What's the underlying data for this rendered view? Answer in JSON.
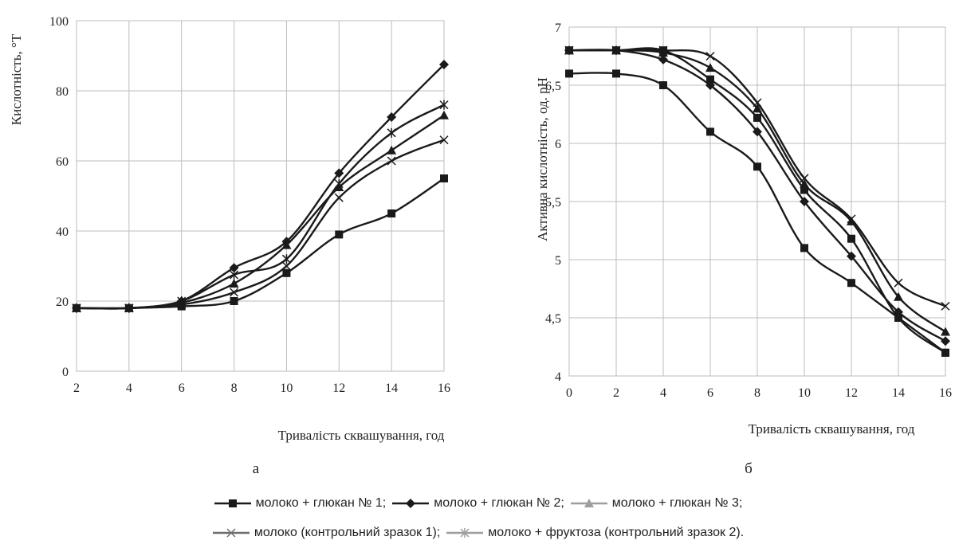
{
  "chart_data": [
    {
      "type": "line",
      "panel_label": "а",
      "xlabel": "Тривалість сквашування, год",
      "ylabel": "Кислотність, °Т",
      "x": [
        2,
        4,
        6,
        8,
        10,
        12,
        14,
        16
      ],
      "xlim": [
        2,
        16
      ],
      "ylim": [
        0,
        100
      ],
      "xticks": [
        "2",
        "4",
        "6",
        "8",
        "10",
        "12",
        "14",
        "16"
      ],
      "yticks": [
        "0",
        "20",
        "40",
        "60",
        "80",
        "100"
      ],
      "grid": true,
      "series": [
        {
          "name": "молоко + глюкан № 1",
          "marker": "square",
          "color": "#1a1a1a",
          "values": [
            18,
            18,
            18.5,
            20,
            28,
            39,
            45,
            55
          ]
        },
        {
          "name": "молоко + глюкан № 2",
          "marker": "diamond",
          "color": "#1a1a1a",
          "values": [
            18,
            18,
            20,
            29.5,
            37,
            56.5,
            72.5,
            87.5
          ]
        },
        {
          "name": "молоко + глюкан № 3",
          "marker": "triangle",
          "color": "#1a1a1a",
          "values": [
            18,
            18,
            19.5,
            25,
            36,
            52.5,
            63,
            73
          ]
        },
        {
          "name": "молоко (контрольний зразок 1)",
          "marker": "x",
          "color": "#1a1a1a",
          "values": [
            18,
            18,
            19,
            22.5,
            30,
            49.5,
            60,
            66
          ]
        },
        {
          "name": "молоко + фруктоза (контрольний зразок 2)",
          "marker": "star",
          "color": "#1a1a1a",
          "values": [
            18,
            18,
            20,
            27.5,
            32,
            53.5,
            68,
            76
          ]
        }
      ]
    },
    {
      "type": "line",
      "panel_label": "б",
      "xlabel": "Тривалість сквашування, год",
      "ylabel": "Активна кислотність, од. pH",
      "x": [
        0,
        2,
        4,
        6,
        8,
        10,
        12,
        14,
        16
      ],
      "xlim": [
        0,
        16
      ],
      "ylim": [
        4,
        7
      ],
      "xticks": [
        "0",
        "2",
        "4",
        "6",
        "8",
        "10",
        "12",
        "14",
        "16"
      ],
      "yticks": [
        "4",
        "4,5",
        "5",
        "5,5",
        "6",
        "6,5",
        "7"
      ],
      "grid": true,
      "series": [
        {
          "name": "молоко + глюкан № 1",
          "marker": "square",
          "color": "#1a1a1a",
          "values": [
            6.6,
            6.6,
            6.5,
            6.1,
            5.8,
            5.1,
            4.8,
            4.5,
            4.2
          ]
        },
        {
          "name": "молоко + глюкан № 2",
          "marker": "diamond",
          "color": "#1a1a1a",
          "values": [
            6.8,
            6.8,
            6.72,
            6.5,
            6.1,
            5.5,
            5.03,
            4.55,
            4.3
          ]
        },
        {
          "name": "молоко + глюкан № 3",
          "marker": "triangle",
          "color": "#1a1a1a",
          "values": [
            6.8,
            6.8,
            6.78,
            6.65,
            6.3,
            5.65,
            5.33,
            4.68,
            4.38
          ]
        },
        {
          "name": "молоко (контрольний зразок 1)",
          "marker": "x",
          "color": "#1a1a1a",
          "values": [
            6.8,
            6.8,
            6.8,
            6.75,
            6.35,
            5.7,
            5.35,
            4.8,
            4.6
          ]
        },
        {
          "name": "молоко + фруктоза (контрольний зразок 2)",
          "marker": "square",
          "color": "#1a1a1a",
          "values": [
            6.8,
            6.8,
            6.8,
            6.55,
            6.22,
            5.6,
            5.18,
            4.5,
            4.2
          ]
        }
      ]
    }
  ],
  "legend": {
    "items": [
      {
        "label": "молоко + глюкан № 1",
        "suffix": ";",
        "marker": "square",
        "color": "#1a1a1a"
      },
      {
        "label": "молоко + глюкан № 2",
        "suffix": ";",
        "marker": "diamond",
        "color": "#1a1a1a"
      },
      {
        "label": "молоко + глюкан № 3",
        "suffix": ";",
        "marker": "triangle",
        "color": "#9e9e9e"
      },
      {
        "label": "молоко (контрольний зразок 1)",
        "suffix": ";",
        "marker": "x",
        "color": "#6e6e6e"
      },
      {
        "label": "молоко + фруктоза (контрольний зразок 2)",
        "suffix": ".",
        "marker": "star",
        "color": "#9e9e9e"
      }
    ]
  }
}
